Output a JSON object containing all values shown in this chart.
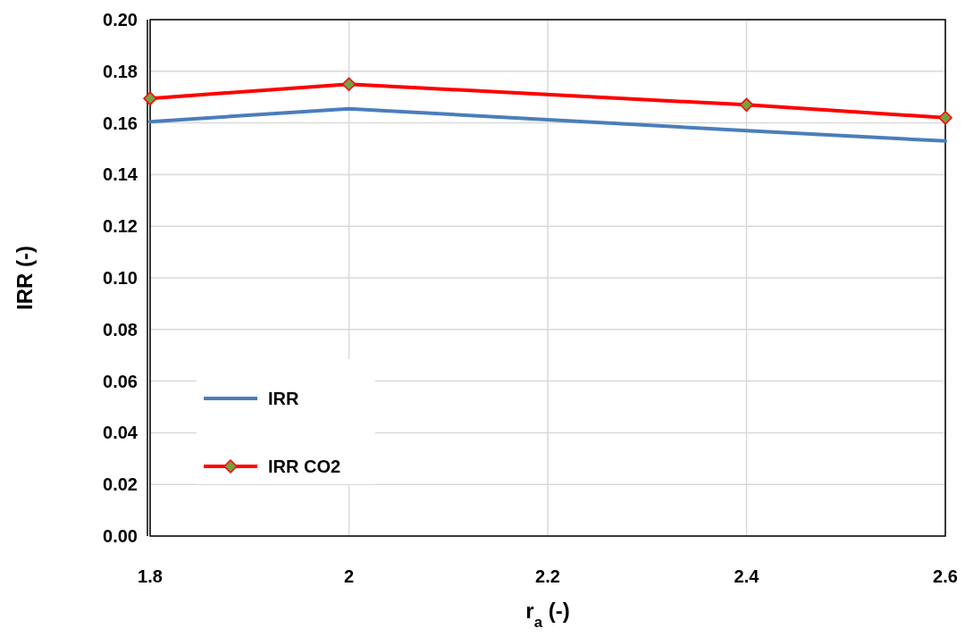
{
  "chart_data": {
    "type": "line",
    "xlabel": "r$_{a}$ (-)",
    "ylabel": "IRR (-)",
    "xlim": [
      1.8,
      2.6
    ],
    "xticks": [
      1.8,
      2,
      2.2,
      2.4,
      2.6
    ],
    "ylim": [
      0,
      0.2
    ],
    "yticks": [
      {
        "value": 0,
        "label": "0.00"
      },
      {
        "value": 0.02,
        "label": "0.02"
      },
      {
        "value": 0.04,
        "label": "0.04"
      },
      {
        "value": 0.06,
        "label": "0.06"
      },
      {
        "value": 0.08,
        "label": "0.08"
      },
      {
        "value": 0.1,
        "label": "0.10"
      },
      {
        "value": 0.12,
        "label": "0.12"
      },
      {
        "value": 0.14,
        "label": "0.14"
      },
      {
        "value": 0.16,
        "label": "0.16"
      },
      {
        "value": 0.18,
        "label": "0.18"
      },
      {
        "value": 0.2,
        "label": "0.20"
      }
    ],
    "grid": true,
    "legend": "bottom left",
    "series": [
      {
        "name": "IRR",
        "color": "#4a7ebb",
        "x": [
          1.8,
          2,
          2.4,
          2.6
        ],
        "values": [
          0.1605,
          0.1655,
          0.157,
          0.153
        ],
        "marker": "none"
      },
      {
        "name": "IRR CO2",
        "color": "#ff0000",
        "x": [
          1.8,
          2,
          2.4,
          2.6
        ],
        "values": [
          0.1695,
          0.175,
          0.167,
          0.162
        ],
        "marker": "diamond"
      }
    ]
  }
}
